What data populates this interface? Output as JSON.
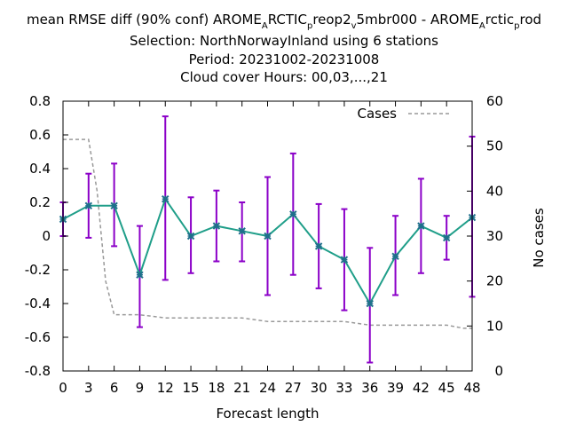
{
  "chart_data": {
    "type": "line",
    "title_lines": [
      {
        "segments": [
          {
            "text": "mean RMSE diff (90% conf) AROME"
          },
          {
            "text": "A",
            "sub": true
          },
          {
            "text": "RCTIC"
          },
          {
            "text": "p",
            "sub": true
          },
          {
            "text": "reop2"
          },
          {
            "text": "v",
            "sub": true
          },
          {
            "text": "5mbr000 - AROME"
          },
          {
            "text": "A",
            "sub": true
          },
          {
            "text": "rctic"
          },
          {
            "text": "p",
            "sub": true
          },
          {
            "text": "rod"
          }
        ]
      },
      {
        "segments": [
          {
            "text": "Selection: NorthNorwayInland using      6 stations"
          }
        ]
      },
      {
        "segments": [
          {
            "text": "Period: 20231002-20231008"
          }
        ]
      },
      {
        "segments": [
          {
            "text": "Cloud cover   Hours:  00,03,...,21"
          }
        ]
      }
    ],
    "xlabel": "Forecast length",
    "ylabel": "",
    "y2label": "No cases",
    "xlim": [
      0,
      48
    ],
    "ylim": [
      -0.8,
      0.8
    ],
    "y2lim": [
      0,
      60
    ],
    "xticks": [
      0,
      3,
      6,
      9,
      12,
      15,
      18,
      21,
      24,
      27,
      30,
      33,
      36,
      39,
      42,
      45,
      48
    ],
    "yticks": [
      -0.8,
      -0.6,
      -0.4,
      -0.2,
      0,
      0.2,
      0.4,
      0.6,
      0.8
    ],
    "ytick_labels": [
      "-0.8",
      "-0.6",
      "-0.4",
      "-0.2",
      "0",
      "0.2",
      "0.4",
      "0.6",
      "0.8"
    ],
    "y2ticks": [
      0,
      10,
      20,
      30,
      40,
      50,
      60
    ],
    "legend": {
      "position": "top-right",
      "entries": [
        {
          "label": "Cases",
          "style": "dashed",
          "color": "#999999"
        }
      ]
    },
    "x": [
      0,
      3,
      6,
      9,
      12,
      15,
      18,
      21,
      24,
      27,
      30,
      33,
      36,
      39,
      42,
      45,
      48
    ],
    "mean": [
      0.1,
      0.18,
      0.18,
      -0.23,
      0.22,
      0.0,
      0.06,
      0.03,
      0.0,
      0.13,
      -0.06,
      -0.14,
      -0.4,
      -0.12,
      0.06,
      -0.01,
      0.11
    ],
    "lower": [
      0.0,
      -0.01,
      -0.06,
      -0.54,
      -0.26,
      -0.22,
      -0.15,
      -0.15,
      -0.35,
      -0.23,
      -0.31,
      -0.44,
      -0.75,
      -0.35,
      -0.22,
      -0.14,
      -0.36
    ],
    "upper": [
      0.2,
      0.37,
      0.43,
      0.06,
      0.71,
      0.23,
      0.27,
      0.2,
      0.35,
      0.49,
      0.19,
      0.16,
      -0.07,
      0.12,
      0.34,
      0.12,
      0.59
    ],
    "cases": {
      "x": [
        0,
        3,
        4,
        5,
        6,
        9,
        12,
        15,
        18,
        21,
        24,
        27,
        30,
        33,
        36,
        39,
        42,
        45,
        47,
        48
      ],
      "values": [
        51.5,
        51.5,
        40,
        20,
        12.5,
        12.5,
        11.8,
        11.8,
        11.8,
        11.8,
        11.0,
        11.0,
        11.0,
        11.0,
        10.2,
        10.2,
        10.2,
        10.2,
        9.5,
        9.5
      ]
    },
    "colors": {
      "line": "#1f9e89",
      "errorbar": "#8b00c8",
      "marker": "#1f6f8b",
      "cases": "#999999",
      "axis": "#000000"
    }
  }
}
